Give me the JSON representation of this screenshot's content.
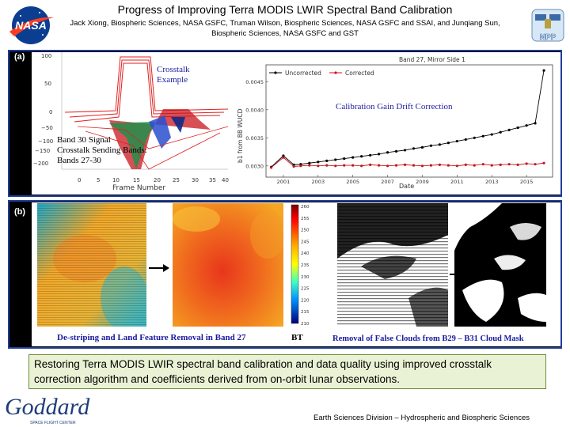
{
  "header": {
    "title": "Progress of Improving Terra MODIS LWIR Spectral Band Calibration",
    "authors_line1": "Jack Xiong, Biospheric Sciences, NASA GSFC, Truman Wilson, Biospheric Sciences, NASA GSFC and SSAI, and Junqiang Sun,",
    "authors_line2": "Biospheric Sciences, NASA GSFC and GST",
    "nasa_logo_text": "NASA",
    "npp_logo_text": "NPP"
  },
  "panel_a": {
    "label": "(a)",
    "crosstalk_label_line1": "Crosstalk",
    "crosstalk_label_line2": "Example",
    "dn_label": "dn",
    "signal_line1": "Band 30 Signal",
    "signal_line2": "Crosstalk Sending Bands:",
    "signal_line3": "Bands 27-30",
    "gain_label": "Calibration Gain Drift Correction",
    "left_plot": {
      "xlabel": "Frame Number",
      "yticks": [
        "100",
        "50",
        "0",
        "−50",
        "−100",
        "−150",
        "−200"
      ],
      "xticks": [
        "0",
        "5",
        "10",
        "15",
        "20",
        "25",
        "30",
        "35",
        "40"
      ]
    },
    "right_plot": {
      "title": "Band 27, Mirror Side 1",
      "ylabel": "b1 from BB WUCD",
      "xlabel": "Date",
      "legend": [
        "Uncorrected",
        "Corrected"
      ],
      "yticks": [
        "0.0045",
        "0.0040",
        "0.0035",
        "0.0030"
      ],
      "xticks": [
        "2001",
        "2003",
        "2005",
        "2007",
        "2009",
        "2011",
        "2013",
        "2015"
      ]
    }
  },
  "chart_data": {
    "type": "line",
    "title": "Band 27, Mirror Side 1",
    "xlabel": "Date",
    "ylabel": "b1 from BB WUCD",
    "ylim": [
      0.0028,
      0.0048
    ],
    "xlim": [
      2000,
      2016.5
    ],
    "legend_position": "top-left",
    "grid": false,
    "x": [
      2000.3,
      2001.0,
      2001.6,
      2002.0,
      2002.5,
      2003.0,
      2003.5,
      2004.0,
      2004.5,
      2005.0,
      2005.5,
      2006.0,
      2006.5,
      2007.0,
      2007.5,
      2008.0,
      2008.5,
      2009.0,
      2009.5,
      2010.0,
      2010.5,
      2011.0,
      2011.5,
      2012.0,
      2012.5,
      2013.0,
      2013.5,
      2014.0,
      2014.5,
      2015.0,
      2015.5,
      2016.0
    ],
    "series": [
      {
        "name": "Uncorrected",
        "color": "#000000",
        "values": [
          0.00298,
          0.00318,
          0.00302,
          0.00303,
          0.00305,
          0.00307,
          0.00309,
          0.00311,
          0.00313,
          0.00315,
          0.00317,
          0.00319,
          0.00321,
          0.00324,
          0.00326,
          0.00328,
          0.00331,
          0.00333,
          0.00336,
          0.00338,
          0.00341,
          0.00344,
          0.00347,
          0.0035,
          0.00353,
          0.00356,
          0.0036,
          0.00364,
          0.00368,
          0.00372,
          0.00376,
          0.0047
        ]
      },
      {
        "name": "Corrected",
        "color": "#c8161d",
        "values": [
          0.00297,
          0.00315,
          0.00299,
          0.003,
          0.00301,
          0.003,
          0.00301,
          0.003,
          0.00301,
          0.00301,
          0.003,
          0.00302,
          0.00301,
          0.003,
          0.00301,
          0.00302,
          0.00301,
          0.003,
          0.00301,
          0.00302,
          0.00301,
          0.003,
          0.00302,
          0.00301,
          0.00303,
          0.00301,
          0.00302,
          0.00303,
          0.00302,
          0.00304,
          0.00303,
          0.00305
        ]
      }
    ]
  },
  "panel_b": {
    "label": "(b)",
    "destriping_label": "De-striping and Land Feature Removal in Band 27",
    "bt_label": "BT",
    "cloud_label": "Removal of False Clouds from B29 – B31 Cloud Mask",
    "colorbar_ticks": [
      "260",
      "255",
      "250",
      "245",
      "240",
      "235",
      "230",
      "225",
      "220",
      "215",
      "210"
    ]
  },
  "summary": "Restoring Terra MODIS LWIR spectral band calibration and data quality using improved crosstalk correction algorithm and coefficients derived from on-orbit lunar observations.",
  "footer": "Earth Sciences Division – Hydrospheric and Biospheric Sciences",
  "goddard_logo_text": "Goddard",
  "goddard_logo_sub": "SPACE FLIGHT CENTER"
}
